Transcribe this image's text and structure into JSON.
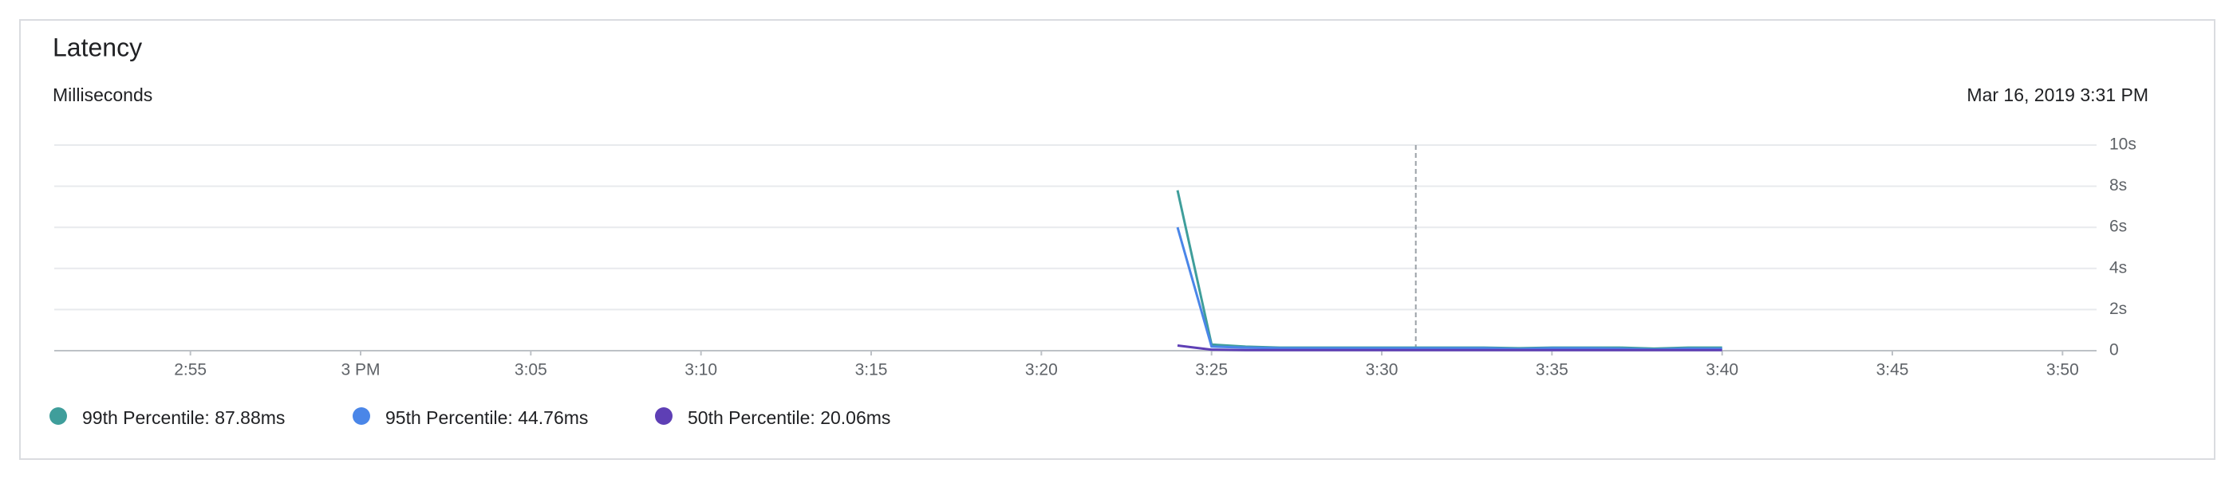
{
  "header": {
    "title": "Latency"
  },
  "chart_data": {
    "type": "line",
    "subtitle": "Milliseconds",
    "annotation": "Mar 16, 2019 3:31 PM",
    "cursor_x": "3:31",
    "x": [
      "3:24",
      "3:25",
      "3:26",
      "3:27",
      "3:28",
      "3:29",
      "3:30",
      "3:31",
      "3:32",
      "3:33",
      "3:34",
      "3:35",
      "3:36",
      "3:37",
      "3:38",
      "3:39",
      "3:40"
    ],
    "series": [
      {
        "name": "99th Percentile: 87.88ms",
        "color": "#3f9e9b",
        "values": [
          7.8,
          0.3,
          0.2,
          0.15,
          0.15,
          0.15,
          0.15,
          0.15,
          0.15,
          0.15,
          0.12,
          0.15,
          0.15,
          0.15,
          0.1,
          0.15,
          0.15
        ]
      },
      {
        "name": "95th Percentile: 44.76ms",
        "color": "#4a86e8",
        "values": [
          6.0,
          0.2,
          0.15,
          0.12,
          0.12,
          0.12,
          0.12,
          0.12,
          0.12,
          0.12,
          0.08,
          0.12,
          0.12,
          0.1,
          0.06,
          0.1,
          0.1
        ]
      },
      {
        "name": "50th Percentile: 20.06ms",
        "color": "#5e3fb5",
        "values": [
          0.25,
          0.05,
          0.03,
          0.03,
          0.03,
          0.03,
          0.03,
          0.03,
          0.03,
          0.03,
          0.03,
          0.03,
          0.03,
          0.03,
          0.03,
          0.03,
          0.03
        ]
      }
    ],
    "xlim": [
      "2:51",
      "3:51"
    ],
    "xticks": [
      "2:55",
      {
        "value": "3:00",
        "label": "3 PM"
      },
      "3:05",
      "3:10",
      "3:15",
      "3:20",
      "3:25",
      "3:30",
      "3:35",
      "3:40",
      "3:45",
      "3:50"
    ],
    "ylim": [
      0,
      10
    ],
    "yticks": [
      {
        "value": 0,
        "label": "0"
      },
      {
        "value": 2,
        "label": "2s"
      },
      {
        "value": 4,
        "label": "4s"
      },
      {
        "value": 6,
        "label": "6s"
      },
      {
        "value": 8,
        "label": "8s"
      },
      {
        "value": 10,
        "label": "10s"
      }
    ],
    "grid": true
  }
}
